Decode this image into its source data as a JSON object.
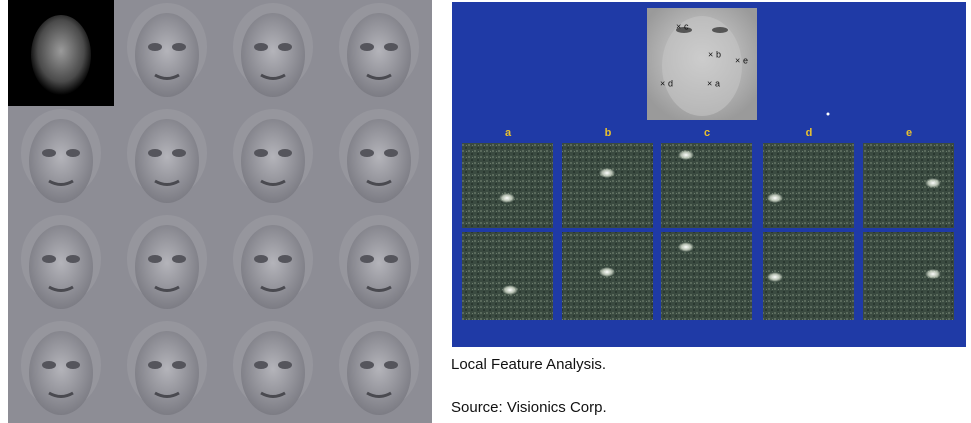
{
  "columns": [
    "a",
    "b",
    "c",
    "d",
    "e"
  ],
  "markers": [
    {
      "label": "c"
    },
    {
      "label": "b"
    },
    {
      "label": "e"
    },
    {
      "label": "d"
    },
    {
      "label": "a"
    }
  ],
  "caption": "Local Feature Analysis.",
  "source": "Source: Visionics Corp."
}
